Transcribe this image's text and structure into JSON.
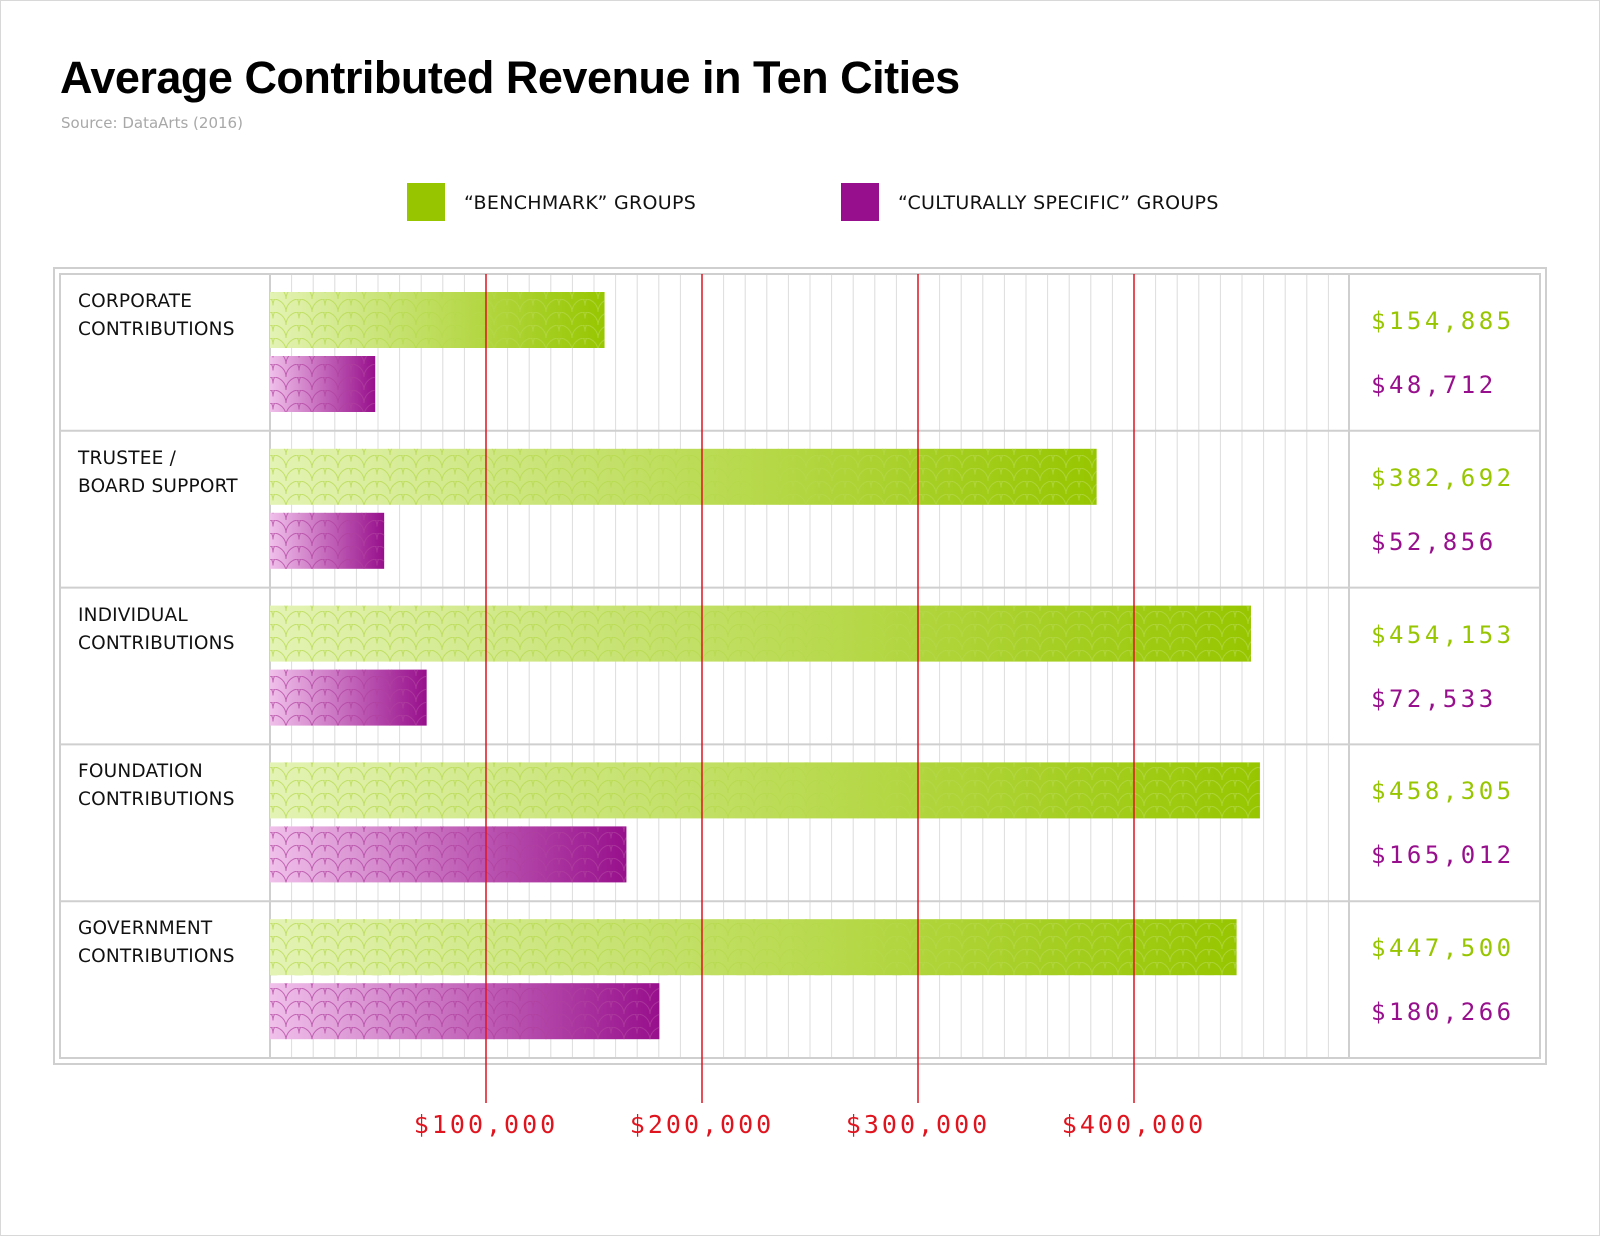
{
  "title": "Average Contributed Revenue in Ten Cities",
  "source": "Source: DataArts (2016)",
  "colors": {
    "benchmark": "#97c600",
    "benchmark_light": "#e3f3b4",
    "culturally_specific": "#970f8c",
    "culturally_specific_light": "#f0c0ea",
    "axis_red": "#e0141e",
    "grid": "#dcdcdc",
    "frame": "#cfcfcf"
  },
  "legend": [
    {
      "label": "“BENCHMARK” GROUPS",
      "color": "#97c600"
    },
    {
      "label": "“CULTURALLY SPECIFIC” GROUPS",
      "color": "#970f8c"
    }
  ],
  "chart_data": {
    "type": "bar",
    "orientation": "horizontal",
    "title": "Average Contributed Revenue in Ten Cities",
    "categories": [
      "CORPORATE\nCONTRIBUTIONS",
      "TRUSTEE /\nBOARD SUPPORT",
      "INDIVIDUAL\nCONTRIBUTIONS",
      "FOUNDATION\nCONTRIBUTIONS",
      "GOVERNMENT\nCONTRIBUTIONS"
    ],
    "series": [
      {
        "name": "“BENCHMARK” GROUPS",
        "values": [
          154885,
          382692,
          454153,
          458305,
          447500
        ],
        "value_labels": [
          "$154,885",
          "$382,692",
          "$454,153",
          "$458,305",
          "$447,500"
        ]
      },
      {
        "name": "“CULTURALLY SPECIFIC” GROUPS",
        "values": [
          48712,
          52856,
          72533,
          165012,
          180266
        ],
        "value_labels": [
          "$48,712",
          "$52,856",
          "$72,533",
          "$165,012",
          "$180,266"
        ]
      }
    ],
    "xlim": [
      0,
      500000
    ],
    "xticks": [
      100000,
      200000,
      300000,
      400000
    ],
    "xtick_labels": [
      "$100,000",
      "$200,000",
      "$300,000",
      "$400,000"
    ],
    "grid": true,
    "legend_position": "top"
  }
}
